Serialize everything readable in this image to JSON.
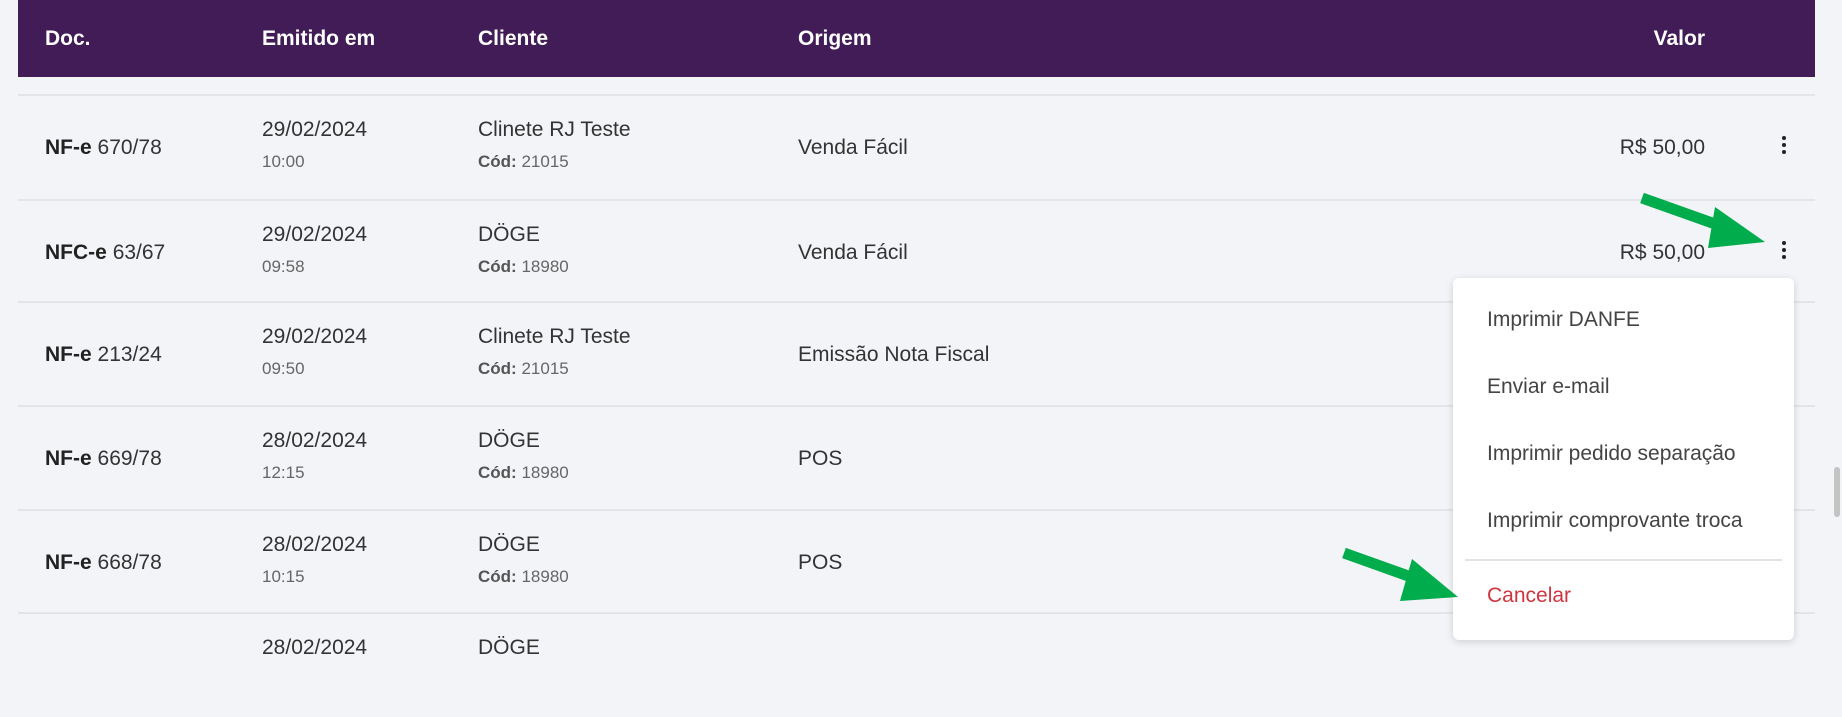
{
  "table": {
    "columns": [
      "Doc.",
      "Emitido em",
      "Cliente",
      "Origem",
      "Valor"
    ],
    "rows": [
      {
        "doc_type": "NF-e",
        "doc_number": "670/78",
        "date": "29/02/2024",
        "time": "10:00",
        "client": "Clinete RJ Teste",
        "code_label": "Cód:",
        "code": "21015",
        "origin": "Venda Fácil",
        "value": "R$ 50,00"
      },
      {
        "doc_type": "NFC-e",
        "doc_number": "63/67",
        "date": "29/02/2024",
        "time": "09:58",
        "client": "DÖGE",
        "code_label": "Cód:",
        "code": "18980",
        "origin": "Venda Fácil",
        "value": "R$ 50,00"
      },
      {
        "doc_type": "NF-e",
        "doc_number": "213/24",
        "date": "29/02/2024",
        "time": "09:50",
        "client": "Clinete RJ Teste",
        "code_label": "Cód:",
        "code": "21015",
        "origin": "Emissão Nota Fiscal",
        "value": ""
      },
      {
        "doc_type": "NF-e",
        "doc_number": "669/78",
        "date": "28/02/2024",
        "time": "12:15",
        "client": "DÖGE",
        "code_label": "Cód:",
        "code": "18980",
        "origin": "POS",
        "value": ""
      },
      {
        "doc_type": "NF-e",
        "doc_number": "668/78",
        "date": "28/02/2024",
        "time": "10:15",
        "client": "DÖGE",
        "code_label": "Cód:",
        "code": "18980",
        "origin": "POS",
        "value": ""
      },
      {
        "doc_type": "",
        "doc_number": "",
        "date": "28/02/2024",
        "time": "",
        "client": "DÖGE",
        "code_label": "",
        "code": "",
        "origin": "",
        "value": ""
      }
    ]
  },
  "context_menu": {
    "items": [
      "Imprimir DANFE",
      "Enviar e-mail",
      "Imprimir pedido separação",
      "Imprimir comprovante troca"
    ],
    "cancel": "Cancelar"
  },
  "colors": {
    "header_bg": "#421c57",
    "cancel": "#d0353f",
    "annotation_arrow": "#00ac4b"
  },
  "icons": {
    "row_menu": "more-vert-icon",
    "annotation": "arrow-icon"
  }
}
